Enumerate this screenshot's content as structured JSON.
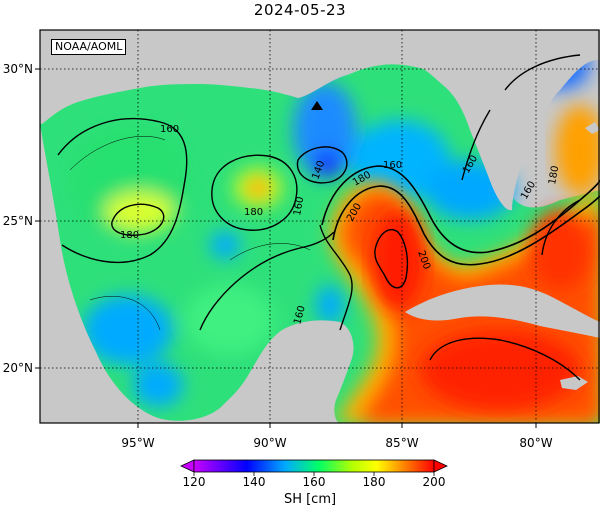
{
  "title": "2024-05-23",
  "credit": "NOAA/AOML",
  "x_ticks": [
    "95°W",
    "90°W",
    "85°W",
    "80°W"
  ],
  "y_ticks": [
    "30°N",
    "25°N",
    "20°N"
  ],
  "contour_labels": [
    "160",
    "180",
    "160",
    "180",
    "160",
    "140",
    "180",
    "160",
    "200",
    "200",
    "160",
    "180",
    "160"
  ],
  "colorbar": {
    "label": "SH [cm]",
    "ticks": [
      "120",
      "140",
      "160",
      "180",
      "200"
    ],
    "range": [
      120,
      200
    ],
    "colors": [
      "#c800ff",
      "#0000ff",
      "#00aaff",
      "#00ff66",
      "#b4ff00",
      "#ffff00",
      "#ff8000",
      "#ff0000"
    ]
  },
  "marker": {
    "symbol": "triangle",
    "lon": -88.3,
    "lat": 28.7
  }
}
